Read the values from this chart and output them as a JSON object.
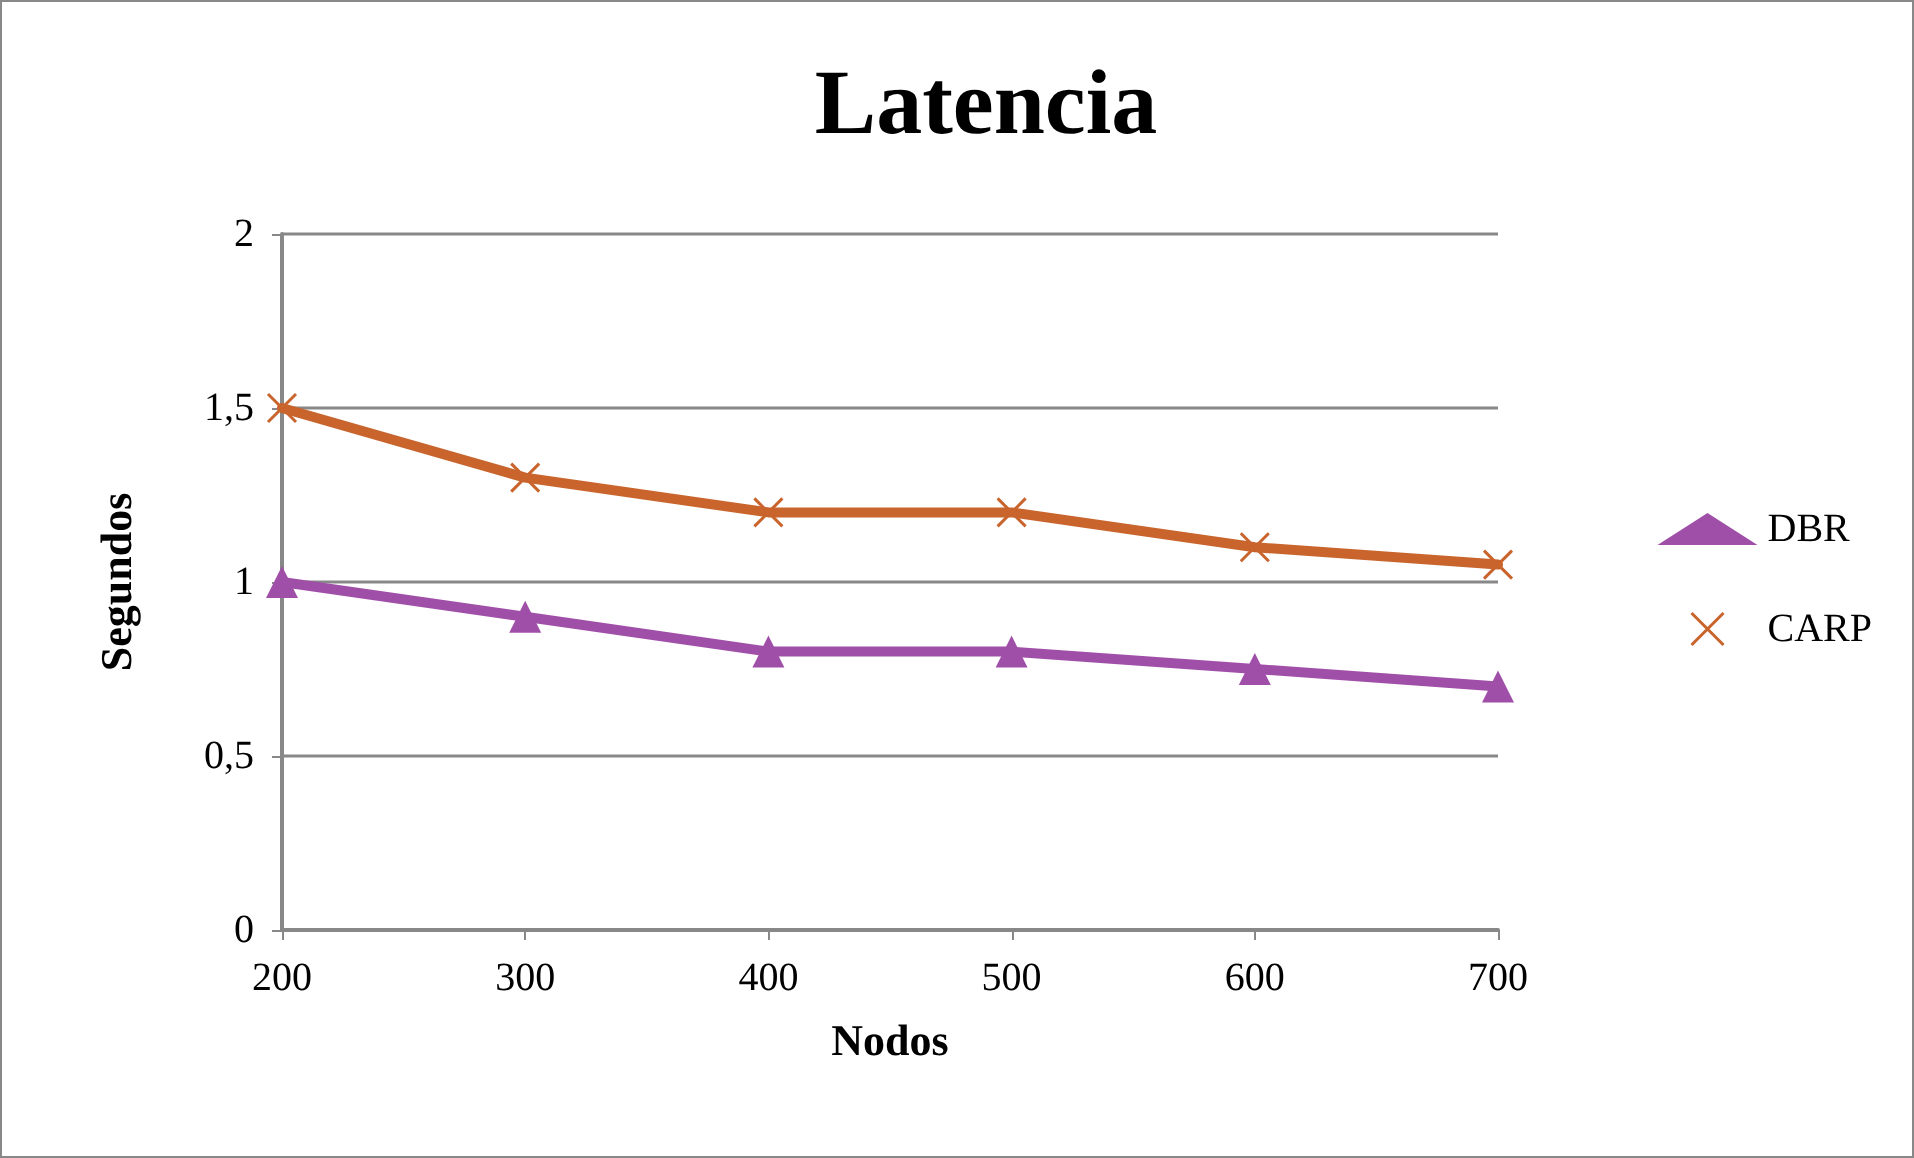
{
  "chart_data": {
    "type": "line",
    "title": "Latencia",
    "xlabel": "Nodos",
    "ylabel": "Segundos",
    "categories": [
      "200",
      "300",
      "400",
      "500",
      "600",
      "700"
    ],
    "series": [
      {
        "name": "DBR",
        "color": "#a04fa8",
        "marker": "triangle",
        "values": [
          1,
          0.9,
          0.8,
          0.8,
          0.75,
          0.7
        ]
      },
      {
        "name": "CARP",
        "color": "#c8642c",
        "marker": "cross",
        "values": [
          1.5,
          1.3,
          1.2,
          1.2,
          1.1,
          1.05
        ]
      }
    ],
    "ylim": [
      0,
      2
    ],
    "yticks": [
      0,
      {
        "value": 0.5,
        "label": "0,5"
      },
      1,
      {
        "value": 1.5,
        "label": "1,5"
      },
      2
    ],
    "grid": "y",
    "legend": "right",
    "line_style": "solid"
  }
}
